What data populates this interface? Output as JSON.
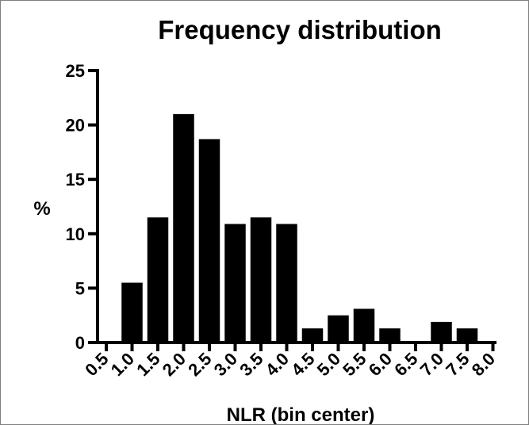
{
  "chart_data": {
    "type": "bar",
    "title": "Frequency distribution",
    "xlabel": "NLR (bin center)",
    "ylabel": "%",
    "categories": [
      "0.5",
      "1.0",
      "1.5",
      "2.0",
      "2.5",
      "3.0",
      "3.5",
      "4.0",
      "4.5",
      "5.0",
      "5.5",
      "6.0",
      "6.5",
      "7.0",
      "7.5",
      "8.0"
    ],
    "values": [
      0,
      5.5,
      11.5,
      21.0,
      18.7,
      10.9,
      11.5,
      10.9,
      1.3,
      2.5,
      3.1,
      1.3,
      0,
      1.9,
      1.3,
      0
    ],
    "ylim": [
      0,
      25
    ],
    "yticks": [
      "0",
      "5",
      "10",
      "15",
      "20",
      "25"
    ],
    "bar_color": "#000000",
    "grid": false,
    "legend": "none"
  }
}
